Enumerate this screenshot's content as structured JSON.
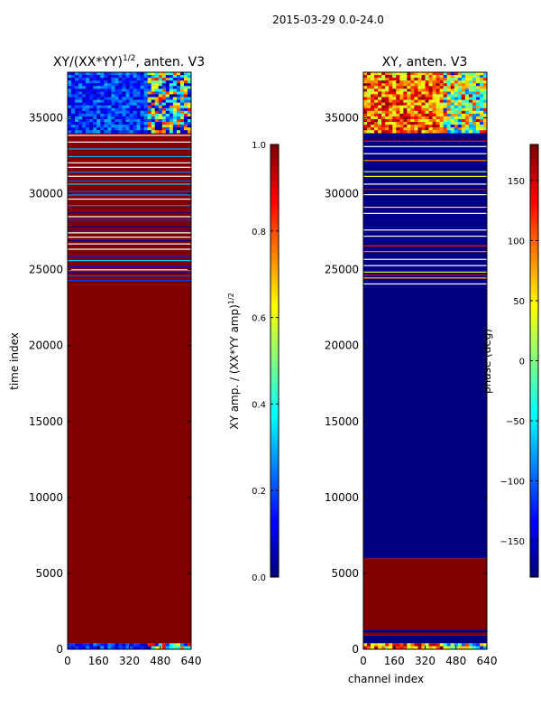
{
  "figure": {
    "suptitle": "2015-03-29 0.0-24.0"
  },
  "chart_data": [
    {
      "type": "heatmap",
      "title_main": "XY/(XX*YY)",
      "title_exp": "1/2",
      "title_tail": ", anten. V3",
      "xlabel": "",
      "ylabel": "time index",
      "xlim": [
        0,
        640
      ],
      "ylim": [
        0,
        38000
      ],
      "xticks": [
        0,
        160,
        320,
        480,
        640
      ],
      "yticks": [
        0,
        5000,
        10000,
        15000,
        20000,
        25000,
        30000,
        35000
      ],
      "colorbar": {
        "label_main": "XY amp. / (XX*YY amp)",
        "label_exp": "1/2",
        "vmin": 0.0,
        "vmax": 1.0,
        "ticks": [
          0.0,
          0.2,
          0.4,
          0.6,
          0.8,
          1.0
        ],
        "tick_labels": [
          "0.0",
          "0.2",
          "0.4",
          "0.6",
          "0.8",
          "1.0"
        ]
      },
      "bands": [
        {
          "y0": 0,
          "y1": 400,
          "value": 0.15,
          "texture": "patchy"
        },
        {
          "y0": 400,
          "y1": 24000,
          "value": 1.0,
          "texture": "solid"
        },
        {
          "y0": 24000,
          "y1": 34000,
          "value": 1.0,
          "texture": "striped"
        },
        {
          "y0": 34000,
          "y1": 38000,
          "value": 0.1,
          "texture": "patchy"
        }
      ]
    },
    {
      "type": "heatmap",
      "title_main": "XY, anten. V3",
      "xlabel": "channel index",
      "ylabel": "",
      "xlim": [
        0,
        640
      ],
      "ylim": [
        0,
        38000
      ],
      "xticks": [
        0,
        160,
        320,
        480,
        640
      ],
      "yticks": [
        0,
        5000,
        10000,
        15000,
        20000,
        25000,
        30000,
        35000
      ],
      "colorbar": {
        "label_main": "phase (deg)",
        "vmin": -180,
        "vmax": 180,
        "ticks": [
          -150,
          -100,
          -50,
          0,
          50,
          100,
          150
        ],
        "tick_labels": [
          "−150",
          "−100",
          "−50",
          "0",
          "50",
          "100",
          "150"
        ]
      },
      "bands": [
        {
          "y0": 0,
          "y1": 400,
          "value": 60,
          "texture": "patchy"
        },
        {
          "y0": 400,
          "y1": 900,
          "value": -180,
          "texture": "solid"
        },
        {
          "y0": 900,
          "y1": 1100,
          "value": 180,
          "texture": "solid"
        },
        {
          "y0": 1100,
          "y1": 1300,
          "value": -180,
          "texture": "solid"
        },
        {
          "y0": 1300,
          "y1": 6000,
          "value": 180,
          "texture": "solid"
        },
        {
          "y0": 6000,
          "y1": 24000,
          "value": -180,
          "texture": "solid"
        },
        {
          "y0": 24000,
          "y1": 34000,
          "value": -180,
          "texture": "striped"
        },
        {
          "y0": 34000,
          "y1": 38000,
          "value": 100,
          "texture": "patchy"
        }
      ]
    }
  ]
}
